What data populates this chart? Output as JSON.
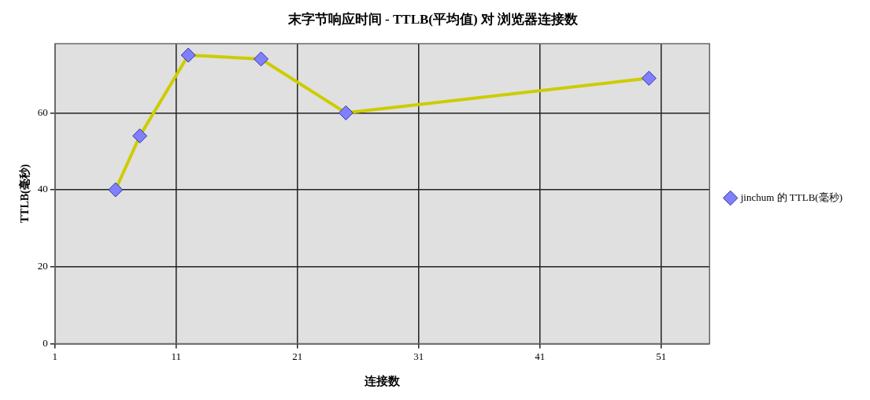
{
  "chart_data": {
    "type": "line",
    "title": "末字节响应时间 - TTLB(平均值) 对 浏览器连接数",
    "xlabel": "连接数",
    "ylabel": "TTLB(毫秒)",
    "x": [
      6,
      8,
      12,
      18,
      25,
      50
    ],
    "series": [
      {
        "name": "jinchum 的 TTLB(毫秒)",
        "color": "#cccc00",
        "values": [
          40,
          54,
          75,
          74,
          60,
          69
        ]
      }
    ],
    "xlim": [
      1,
      55
    ],
    "xticks": [
      1,
      11,
      21,
      31,
      41,
      51
    ],
    "ylim": [
      0,
      78
    ],
    "yticks": [
      0,
      20,
      40,
      60
    ],
    "grid": true,
    "legend": "right",
    "marker": "diamond",
    "line_style": "solid"
  }
}
